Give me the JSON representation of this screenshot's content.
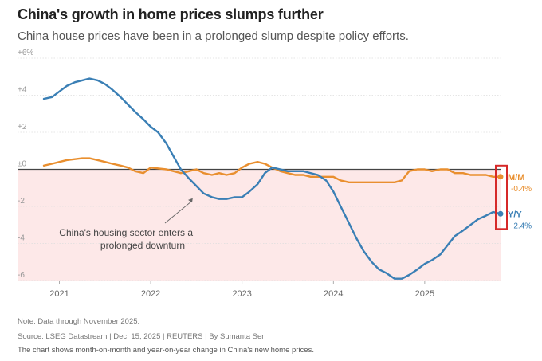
{
  "header": {
    "title": "China's growth in home prices slumps further",
    "subtitle": "China house prices have been in a prolonged slump despite policy efforts."
  },
  "footer": {
    "note": "Note: Data through November 2025.",
    "source": "Source: LSEG Datastream | Dec. 15, 2025 | REUTERS | By Sumanta Sen",
    "description": "The chart shows month-on-month and year-on-year change in China's new home prices."
  },
  "colors": {
    "mm": "#e98f2f",
    "yy": "#3a7fb5",
    "negative_band": "#fde8e8",
    "highlight_box": "#d62828",
    "grid": "#dddddd",
    "zero_line": "#444444"
  },
  "chart_data": {
    "type": "line",
    "title": "China's growth in home prices slumps further",
    "xlabel": "",
    "ylabel": "",
    "x_range": [
      2020.83,
      2025.83
    ],
    "ylim": [
      -6,
      6
    ],
    "y_ticks": [
      {
        "value": 6,
        "label": "+6%"
      },
      {
        "value": 4,
        "label": "+4"
      },
      {
        "value": 2,
        "label": "+2"
      },
      {
        "value": 0,
        "label": "±0"
      },
      {
        "value": -2,
        "label": "-2"
      },
      {
        "value": -4,
        "label": "-4"
      },
      {
        "value": -6,
        "label": "-6"
      }
    ],
    "x_ticks": [
      {
        "value": 2021,
        "label": "2021"
      },
      {
        "value": 2022,
        "label": "2022"
      },
      {
        "value": 2023,
        "label": "2023"
      },
      {
        "value": 2024,
        "label": "2024"
      },
      {
        "value": 2025,
        "label": "2025"
      }
    ],
    "annotation": {
      "text_line1": "China's housing sector enters a",
      "text_line2": "prolonged downturn",
      "arrow_to": {
        "x": 2022.45,
        "y": -1.5
      }
    },
    "series": [
      {
        "name": "M/M",
        "end_label": "M/M",
        "end_value_label": "-0.4%",
        "points": [
          [
            2020.83,
            0.2
          ],
          [
            2020.92,
            0.3
          ],
          [
            2021.0,
            0.4
          ],
          [
            2021.08,
            0.5
          ],
          [
            2021.17,
            0.55
          ],
          [
            2021.25,
            0.6
          ],
          [
            2021.33,
            0.6
          ],
          [
            2021.42,
            0.5
          ],
          [
            2021.5,
            0.4
          ],
          [
            2021.58,
            0.3
          ],
          [
            2021.67,
            0.2
          ],
          [
            2021.75,
            0.1
          ],
          [
            2021.83,
            -0.1
          ],
          [
            2021.92,
            -0.2
          ],
          [
            2022.0,
            0.1
          ],
          [
            2022.08,
            0.05
          ],
          [
            2022.17,
            0.0
          ],
          [
            2022.25,
            -0.1
          ],
          [
            2022.33,
            -0.2
          ],
          [
            2022.42,
            -0.1
          ],
          [
            2022.5,
            0.0
          ],
          [
            2022.58,
            -0.2
          ],
          [
            2022.67,
            -0.3
          ],
          [
            2022.75,
            -0.2
          ],
          [
            2022.83,
            -0.3
          ],
          [
            2022.92,
            -0.2
          ],
          [
            2023.0,
            0.1
          ],
          [
            2023.08,
            0.3
          ],
          [
            2023.17,
            0.4
          ],
          [
            2023.25,
            0.3
          ],
          [
            2023.33,
            0.1
          ],
          [
            2023.42,
            -0.1
          ],
          [
            2023.5,
            -0.2
          ],
          [
            2023.58,
            -0.3
          ],
          [
            2023.67,
            -0.3
          ],
          [
            2023.75,
            -0.4
          ],
          [
            2023.83,
            -0.4
          ],
          [
            2023.92,
            -0.4
          ],
          [
            2024.0,
            -0.4
          ],
          [
            2024.08,
            -0.6
          ],
          [
            2024.17,
            -0.7
          ],
          [
            2024.25,
            -0.7
          ],
          [
            2024.33,
            -0.7
          ],
          [
            2024.42,
            -0.7
          ],
          [
            2024.5,
            -0.7
          ],
          [
            2024.58,
            -0.7
          ],
          [
            2024.67,
            -0.7
          ],
          [
            2024.75,
            -0.6
          ],
          [
            2024.83,
            -0.1
          ],
          [
            2024.92,
            0.0
          ],
          [
            2025.0,
            0.0
          ],
          [
            2025.08,
            -0.1
          ],
          [
            2025.17,
            0.0
          ],
          [
            2025.25,
            0.0
          ],
          [
            2025.33,
            -0.2
          ],
          [
            2025.42,
            -0.2
          ],
          [
            2025.5,
            -0.3
          ],
          [
            2025.58,
            -0.3
          ],
          [
            2025.67,
            -0.3
          ],
          [
            2025.75,
            -0.4
          ],
          [
            2025.83,
            -0.4
          ]
        ]
      },
      {
        "name": "Y/Y",
        "end_label": "Y/Y",
        "end_value_label": "-2.4%",
        "points": [
          [
            2020.83,
            3.8
          ],
          [
            2020.92,
            3.9
          ],
          [
            2021.0,
            4.2
          ],
          [
            2021.08,
            4.5
          ],
          [
            2021.17,
            4.7
          ],
          [
            2021.25,
            4.8
          ],
          [
            2021.33,
            4.9
          ],
          [
            2021.42,
            4.8
          ],
          [
            2021.5,
            4.6
          ],
          [
            2021.58,
            4.3
          ],
          [
            2021.67,
            3.9
          ],
          [
            2021.75,
            3.5
          ],
          [
            2021.83,
            3.1
          ],
          [
            2021.92,
            2.7
          ],
          [
            2022.0,
            2.3
          ],
          [
            2022.08,
            2.0
          ],
          [
            2022.17,
            1.4
          ],
          [
            2022.25,
            0.7
          ],
          [
            2022.33,
            0.0
          ],
          [
            2022.42,
            -0.5
          ],
          [
            2022.5,
            -0.9
          ],
          [
            2022.58,
            -1.3
          ],
          [
            2022.67,
            -1.5
          ],
          [
            2022.75,
            -1.6
          ],
          [
            2022.83,
            -1.6
          ],
          [
            2022.92,
            -1.5
          ],
          [
            2023.0,
            -1.5
          ],
          [
            2023.08,
            -1.2
          ],
          [
            2023.17,
            -0.8
          ],
          [
            2023.25,
            -0.2
          ],
          [
            2023.33,
            0.1
          ],
          [
            2023.42,
            0.0
          ],
          [
            2023.5,
            -0.1
          ],
          [
            2023.58,
            -0.1
          ],
          [
            2023.67,
            -0.1
          ],
          [
            2023.75,
            -0.2
          ],
          [
            2023.83,
            -0.3
          ],
          [
            2023.92,
            -0.6
          ],
          [
            2024.0,
            -1.2
          ],
          [
            2024.08,
            -2.0
          ],
          [
            2024.17,
            -2.9
          ],
          [
            2024.25,
            -3.7
          ],
          [
            2024.33,
            -4.4
          ],
          [
            2024.42,
            -5.0
          ],
          [
            2024.5,
            -5.4
          ],
          [
            2024.58,
            -5.6
          ],
          [
            2024.67,
            -5.9
          ],
          [
            2024.75,
            -5.9
          ],
          [
            2024.83,
            -5.7
          ],
          [
            2024.92,
            -5.4
          ],
          [
            2025.0,
            -5.1
          ],
          [
            2025.08,
            -4.9
          ],
          [
            2025.17,
            -4.6
          ],
          [
            2025.25,
            -4.1
          ],
          [
            2025.33,
            -3.6
          ],
          [
            2025.42,
            -3.3
          ],
          [
            2025.5,
            -3.0
          ],
          [
            2025.58,
            -2.7
          ],
          [
            2025.67,
            -2.5
          ],
          [
            2025.75,
            -2.3
          ],
          [
            2025.83,
            -2.4
          ]
        ]
      }
    ]
  }
}
